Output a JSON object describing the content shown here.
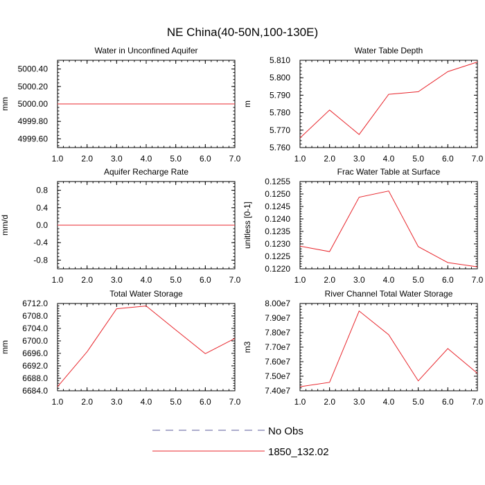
{
  "figure": {
    "title": "NE China(40-50N,100-130E)"
  },
  "legend": {
    "entries": [
      {
        "label": "No Obs",
        "color": "#5a5a9a",
        "dash": "dashed"
      },
      {
        "label": "1850_132.02",
        "color": "#e8252b",
        "dash": "solid"
      }
    ]
  },
  "chart_data": [
    {
      "type": "line",
      "title": "Water in Unconfined Aquifer",
      "xlabel": "",
      "ylabel": "mm",
      "xlim": [
        1,
        7
      ],
      "ylim": [
        4999.5,
        5000.5
      ],
      "xticks": [
        1,
        2,
        3,
        4,
        5,
        6,
        7
      ],
      "xtick_labels": [
        "1.0",
        "2.0",
        "3.0",
        "4.0",
        "5.0",
        "6.0",
        "7.0"
      ],
      "yticks": [
        4999.6,
        4999.8,
        5000.0,
        5000.2,
        5000.4
      ],
      "ytick_labels": [
        "4999.60",
        "4999.80",
        "5000.00",
        "5000.20",
        "5000.40"
      ],
      "series": [
        {
          "name": "1850_132.02",
          "color": "#e8252b",
          "x": [
            1,
            2,
            3,
            4,
            5,
            6,
            7
          ],
          "values": [
            5000.0,
            5000.0,
            5000.0,
            5000.0,
            5000.0,
            5000.0,
            5000.0
          ]
        }
      ]
    },
    {
      "type": "line",
      "title": "Water Table Depth",
      "xlabel": "",
      "ylabel": "m",
      "xlim": [
        1,
        7
      ],
      "ylim": [
        5.76,
        5.81
      ],
      "xticks": [
        1,
        2,
        3,
        4,
        5,
        6,
        7
      ],
      "xtick_labels": [
        "1.0",
        "2.0",
        "3.0",
        "4.0",
        "5.0",
        "6.0",
        "7.0"
      ],
      "yticks": [
        5.76,
        5.77,
        5.78,
        5.79,
        5.8,
        5.81
      ],
      "ytick_labels": [
        "5.760",
        "5.770",
        "5.780",
        "5.790",
        "5.800",
        "5.810"
      ],
      "series": [
        {
          "name": "1850_132.02",
          "color": "#e8252b",
          "x": [
            1,
            2,
            3,
            4,
            5,
            6,
            7
          ],
          "values": [
            5.7655,
            5.7815,
            5.7675,
            5.7905,
            5.792,
            5.8035,
            5.809
          ]
        }
      ]
    },
    {
      "type": "line",
      "title": "Aquifer Recharge Rate",
      "xlabel": "",
      "ylabel": "mm/d",
      "xlim": [
        1,
        7
      ],
      "ylim": [
        -1.0,
        1.0
      ],
      "xticks": [
        1,
        2,
        3,
        4,
        5,
        6,
        7
      ],
      "xtick_labels": [
        "1.0",
        "2.0",
        "3.0",
        "4.0",
        "5.0",
        "6.0",
        "7.0"
      ],
      "yticks": [
        -0.8,
        -0.4,
        0.0,
        0.4,
        0.8
      ],
      "ytick_labels": [
        "-0.8",
        "-0.4",
        "0.0",
        "0.4",
        "0.8"
      ],
      "series": [
        {
          "name": "1850_132.02",
          "color": "#e8252b",
          "x": [
            1,
            2,
            3,
            4,
            5,
            6,
            7
          ],
          "values": [
            0,
            0,
            0,
            0,
            0,
            0,
            0
          ]
        }
      ]
    },
    {
      "type": "line",
      "title": "Frac Water Table at Surface",
      "xlabel": "",
      "ylabel": "unitless [0-1]",
      "xlim": [
        1,
        7
      ],
      "ylim": [
        0.122,
        0.1255
      ],
      "xticks": [
        1,
        2,
        3,
        4,
        5,
        6,
        7
      ],
      "xtick_labels": [
        "1.0",
        "2.0",
        "3.0",
        "4.0",
        "5.0",
        "6.0",
        "7.0"
      ],
      "yticks": [
        0.122,
        0.1225,
        0.123,
        0.1235,
        0.124,
        0.1245,
        0.125,
        0.1255
      ],
      "ytick_labels": [
        "0.1220",
        "0.1225",
        "0.1230",
        "0.1235",
        "0.1240",
        "0.1245",
        "0.1250",
        "0.1255"
      ],
      "series": [
        {
          "name": "1850_132.02",
          "color": "#e8252b",
          "x": [
            1,
            2,
            3,
            4,
            5,
            6,
            7
          ],
          "values": [
            0.12291,
            0.12269,
            0.12487,
            0.12512,
            0.12289,
            0.12225,
            0.12208
          ]
        }
      ]
    },
    {
      "type": "line",
      "title": "Total Water Storage",
      "xlabel": "",
      "ylabel": "mm",
      "xlim": [
        1,
        7
      ],
      "ylim": [
        6684,
        6712
      ],
      "xticks": [
        1,
        2,
        3,
        4,
        5,
        6,
        7
      ],
      "xtick_labels": [
        "1.0",
        "2.0",
        "3.0",
        "4.0",
        "5.0",
        "6.0",
        "7.0"
      ],
      "yticks": [
        6684,
        6688,
        6692,
        6696,
        6700,
        6704,
        6708,
        6712
      ],
      "ytick_labels": [
        "6684.0",
        "6688.0",
        "6692.0",
        "6696.0",
        "6700.0",
        "6704.0",
        "6708.0",
        "6712.0"
      ],
      "series": [
        {
          "name": "1850_132.02",
          "color": "#e8252b",
          "x": [
            1,
            2,
            3,
            4,
            5,
            6,
            7
          ],
          "values": [
            6685.3,
            6696.5,
            6710.3,
            6711.2,
            6703.5,
            6695.9,
            6700.8
          ]
        }
      ]
    },
    {
      "type": "line",
      "title": "River Channel Total Water Storage",
      "xlabel": "",
      "ylabel": "m3",
      "xlim": [
        1,
        7
      ],
      "ylim": [
        74000000.0,
        80000000.0
      ],
      "xticks": [
        1,
        2,
        3,
        4,
        5,
        6,
        7
      ],
      "xtick_labels": [
        "1.0",
        "2.0",
        "3.0",
        "4.0",
        "5.0",
        "6.0",
        "7.0"
      ],
      "yticks": [
        74000000.0,
        75000000.0,
        76000000.0,
        77000000.0,
        78000000.0,
        79000000.0,
        80000000.0
      ],
      "ytick_labels": [
        "7.40e7",
        "7.50e7",
        "7.60e7",
        "7.70e7",
        "7.80e7",
        "7.90e7",
        "8.00e7"
      ],
      "series": [
        {
          "name": "1850_132.02",
          "color": "#e8252b",
          "x": [
            1,
            2,
            3,
            4,
            5,
            6,
            7
          ],
          "values": [
            74280000.0,
            74580000.0,
            79480000.0,
            77850000.0,
            74680000.0,
            76900000.0,
            75200000.0
          ]
        }
      ]
    }
  ]
}
